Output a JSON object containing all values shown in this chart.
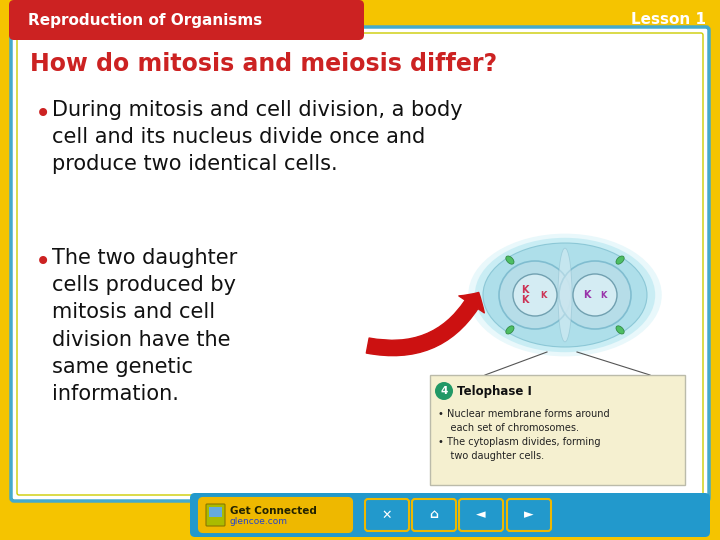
{
  "background_outer": "#F5C400",
  "background_inner": "#FFFFFF",
  "header_bar_color": "#CC2222",
  "header_text": "Reproduction of Organisms",
  "header_text_color": "#FFFFFF",
  "lesson_text": "Lesson 1",
  "lesson_text_color": "#FFFFFF",
  "title_text": "How do mitosis and meiosis differ?",
  "title_color": "#CC2222",
  "title_fontsize": 17,
  "bullet1": "During mitosis and cell division, a body\ncell and its nucleus divide once and\nproduce two identical cells.",
  "bullet2_left": "The two daughter\ncells produced by\nmitosis and cell\ndivision have the\nsame genetic\ninformation.",
  "bullet_color": "#111111",
  "bullet_fontsize": 15,
  "bullet_dot_color": "#CC2222",
  "caption_title": "Telophase I",
  "caption_line1": "• Nuclear membrane forms around",
  "caption_line2": "    each set of chromosomes.",
  "caption_line3": "• The cytoplasm divides, forming",
  "caption_line4": "    two daughter cells.",
  "caption_bg": "#F5F0D0",
  "caption_border": "#BBBBAA",
  "footer_bg": "#2299CC",
  "footer_text1": "Get Connected",
  "footer_text2": "glencoe.com",
  "inner_border_color": "#44AACC",
  "inner_border2_color": "#CCCC00"
}
